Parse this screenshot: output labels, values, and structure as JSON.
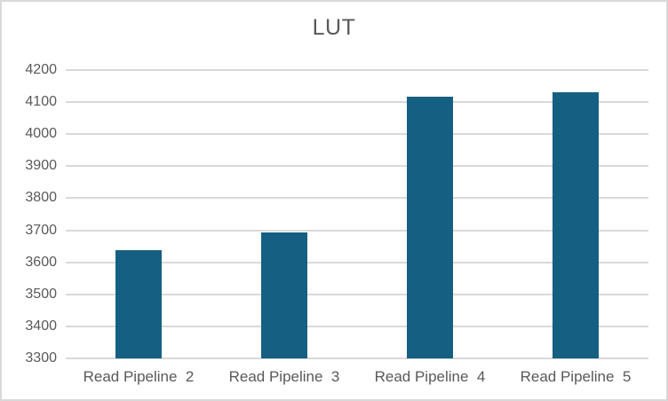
{
  "chart_data": {
    "type": "bar",
    "title": "LUT",
    "categories": [
      "Read Pipeline  2",
      "Read Pipeline  3",
      "Read Pipeline  4",
      "Read Pipeline  5"
    ],
    "values": [
      3638,
      3694,
      4116,
      4132
    ],
    "ylim": [
      3300,
      4200
    ],
    "yticks": [
      3300,
      3400,
      3500,
      3600,
      3700,
      3800,
      3900,
      4000,
      4100,
      4200
    ],
    "xlabel": "",
    "ylabel": "",
    "legend": "none",
    "grid": "horizontal",
    "bar_color": "#156082",
    "gridline_color": "#d9d9d9",
    "axis_line_color": "#d9d9d9",
    "text_color": "#595959",
    "border_color": "#d9d9d9",
    "background_color": "#ffffff"
  }
}
